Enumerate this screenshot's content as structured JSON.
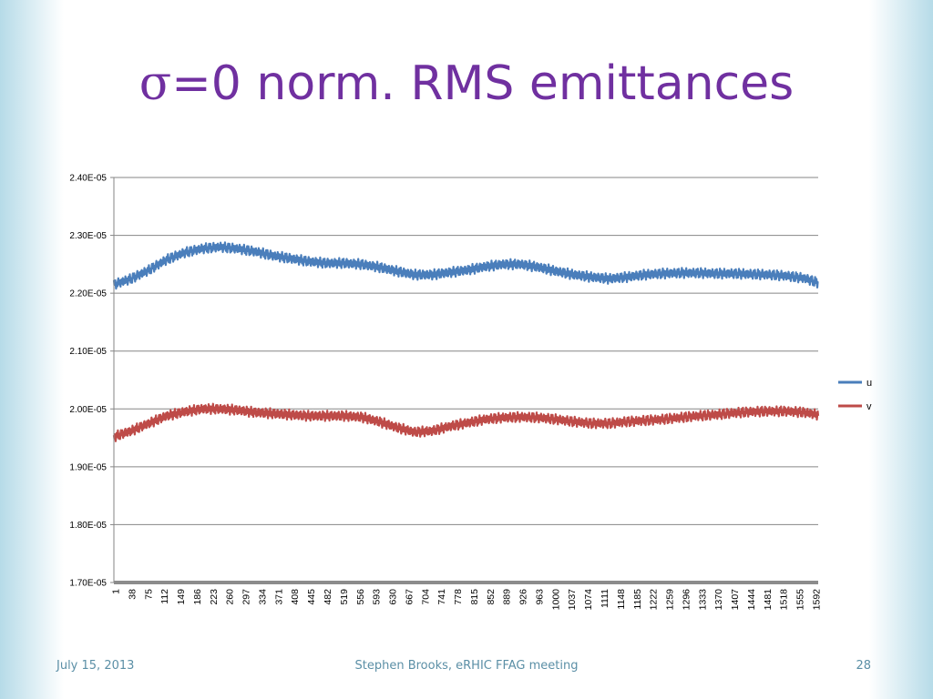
{
  "slide": {
    "title_symbol": "σ",
    "title_rest": "=0 norm. RMS emittances",
    "footer_date": "July 15, 2013",
    "footer_center": "Stephen Brooks, eRHIC FFAG meeting",
    "page_number": "28"
  },
  "colors": {
    "title": "#7030a0",
    "u": "#4a7ebb",
    "v": "#be4b48",
    "grid": "#868686",
    "footer": "#5b8fa6"
  },
  "chart_data": {
    "type": "line",
    "title": "",
    "xlabel": "",
    "ylabel": "",
    "ylim": [
      1.7e-05,
      2.4e-05
    ],
    "xlim": [
      1,
      1592
    ],
    "y_tick_labels": [
      "2.40E-05",
      "2.30E-05",
      "2.20E-05",
      "2.10E-05",
      "2.00E-05",
      "1.90E-05",
      "1.80E-05",
      "1.70E-05"
    ],
    "y_ticks": [
      2.4e-05,
      2.3e-05,
      2.2e-05,
      2.1e-05,
      2e-05,
      1.9e-05,
      1.8e-05,
      1.7e-05
    ],
    "x_tick_labels": [
      "1",
      "38",
      "75",
      "112",
      "149",
      "186",
      "223",
      "260",
      "297",
      "334",
      "371",
      "408",
      "445",
      "482",
      "519",
      "556",
      "593",
      "630",
      "667",
      "704",
      "741",
      "778",
      "815",
      "852",
      "889",
      "926",
      "963",
      "1000",
      "1037",
      "1074",
      "1111",
      "1148",
      "1185",
      "1222",
      "1259",
      "1296",
      "1333",
      "1370",
      "1407",
      "1444",
      "1481",
      "1518",
      "1555",
      "1592"
    ],
    "grid": true,
    "legend_position": "right",
    "oscillation_amplitude": 6e-08,
    "series": [
      {
        "name": "u",
        "color": "#4a7ebb",
        "x": [
          1,
          40,
          80,
          120,
          160,
          200,
          240,
          280,
          320,
          360,
          400,
          440,
          480,
          520,
          560,
          600,
          640,
          680,
          720,
          760,
          800,
          840,
          880,
          920,
          960,
          1000,
          1040,
          1080,
          1120,
          1160,
          1200,
          1240,
          1280,
          1320,
          1360,
          1400,
          1440,
          1480,
          1520,
          1560,
          1592
        ],
        "y": [
          2.215e-05,
          2.225e-05,
          2.24e-05,
          2.258e-05,
          2.27e-05,
          2.277e-05,
          2.28e-05,
          2.277e-05,
          2.272e-05,
          2.265e-05,
          2.26e-05,
          2.255e-05,
          2.252e-05,
          2.252e-05,
          2.25e-05,
          2.245e-05,
          2.238e-05,
          2.232e-05,
          2.232e-05,
          2.236e-05,
          2.24e-05,
          2.246e-05,
          2.25e-05,
          2.25e-05,
          2.245e-05,
          2.238e-05,
          2.232e-05,
          2.228e-05,
          2.225e-05,
          2.228e-05,
          2.232e-05,
          2.234e-05,
          2.235e-05,
          2.235e-05,
          2.234e-05,
          2.234e-05,
          2.233e-05,
          2.232e-05,
          2.23e-05,
          2.226e-05,
          2.218e-05
        ]
      },
      {
        "name": "v",
        "color": "#be4b48",
        "x": [
          1,
          40,
          80,
          120,
          160,
          200,
          240,
          280,
          320,
          360,
          400,
          440,
          480,
          520,
          560,
          600,
          640,
          680,
          720,
          760,
          800,
          840,
          880,
          920,
          960,
          1000,
          1040,
          1080,
          1120,
          1160,
          1200,
          1240,
          1280,
          1320,
          1360,
          1400,
          1440,
          1480,
          1520,
          1560,
          1592
        ],
        "y": [
          1.952e-05,
          1.962e-05,
          1.975e-05,
          1.988e-05,
          1.995e-05,
          2e-05,
          2e-05,
          1.998e-05,
          1.994e-05,
          1.992e-05,
          1.99e-05,
          1.988e-05,
          1.988e-05,
          1.988e-05,
          1.986e-05,
          1.978e-05,
          1.968e-05,
          1.96e-05,
          1.962e-05,
          1.97e-05,
          1.976e-05,
          1.982e-05,
          1.985e-05,
          1.986e-05,
          1.985e-05,
          1.982e-05,
          1.978e-05,
          1.975e-05,
          1.975e-05,
          1.978e-05,
          1.98e-05,
          1.982e-05,
          1.985e-05,
          1.988e-05,
          1.99e-05,
          1.993e-05,
          1.995e-05,
          1.996e-05,
          1.996e-05,
          1.994e-05,
          1.99e-05
        ]
      }
    ]
  }
}
